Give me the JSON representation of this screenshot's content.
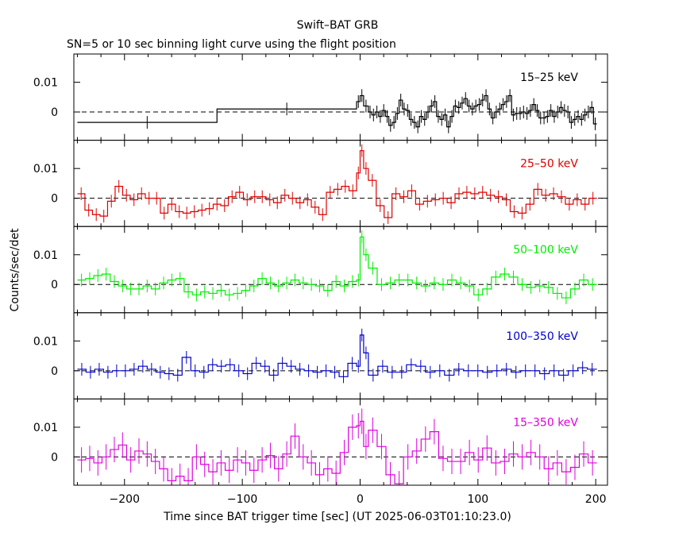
{
  "chart_data": {
    "type": "line",
    "title": "Swift–BAT GRB",
    "subtitle": "SN=5 or 10 sec binning light curve using the flight position",
    "xlabel": "Time since BAT trigger time [sec] (UT 2025-06-03T01:10:23.0)",
    "ylabel": "Counts/sec/det",
    "xlim": [
      -243,
      210
    ],
    "ylim": [
      -0.0095,
      0.0195
    ],
    "x_ticks": [
      -200,
      -100,
      0,
      100,
      200
    ],
    "y_ticks": [
      0,
      0.01
    ],
    "zero_line": "dashed",
    "panels": [
      {
        "label": "15–25 keV",
        "color": "#000000",
        "values": [
          -0.0035,
          0.001,
          0.0035,
          0.0055,
          0.002,
          0.0,
          -0.001,
          0.0,
          -0.0015,
          0.0005,
          -0.0015,
          -0.0045,
          -0.0035,
          -0.0005,
          0.004,
          0.001,
          0.0005,
          -0.0025,
          -0.0035,
          -0.005,
          -0.0015,
          -0.0025,
          0.0,
          0.002,
          0.0035,
          -0.0015,
          -0.0025,
          -0.001,
          -0.005,
          -0.0015,
          0.002,
          0.0015,
          0.003,
          0.0045,
          0.002,
          0.001,
          0.002,
          0.0025,
          0.004,
          0.0055,
          0.001,
          -0.002,
          0.0,
          0.001,
          0.0025,
          0.0035,
          0.0055,
          -0.001,
          -0.0005,
          -0.0005,
          0.0,
          -0.0005,
          0.0005,
          0.0025,
          0.0005,
          -0.002,
          -0.002,
          -0.0015,
          0.0005,
          -0.0015,
          0.0,
          0.0015,
          0.0005,
          0.0,
          -0.0035,
          -0.0025,
          -0.0015,
          -0.0025,
          -0.001,
          0.0,
          0.0015,
          -0.004
        ]
      },
      {
        "label": "25–50 keV",
        "color": "#dd0000",
        "values": [
          0.0015,
          -0.004,
          -0.0055,
          -0.006,
          -0.001,
          0.004,
          0.001,
          -0.0005,
          0.0015,
          0.0,
          0.0,
          -0.005,
          -0.002,
          -0.0045,
          -0.005,
          -0.0045,
          -0.004,
          -0.0035,
          -0.002,
          -0.0025,
          0.0005,
          0.002,
          -0.0005,
          0.0005,
          0.0005,
          -0.0005,
          -0.0015,
          0.001,
          0.0,
          -0.0015,
          -0.0005,
          -0.003,
          -0.0055,
          0.002,
          0.003,
          0.004,
          0.0025,
          0.0085,
          0.016,
          0.01,
          0.006,
          -0.0025,
          -0.0065,
          0.0015,
          0.0005,
          0.0025,
          -0.002,
          -0.001,
          -0.0005,
          0.0,
          -0.0015,
          0.0015,
          0.002,
          0.0015,
          0.002,
          0.001,
          0.0005,
          -0.0005,
          -0.0045,
          -0.005,
          -0.002,
          0.003,
          0.001,
          0.0015,
          0.0005,
          -0.002,
          -0.0005,
          -0.002,
          0.0
        ]
      },
      {
        "label": "50–100 keV",
        "color": "#00ee00",
        "values": [
          0.0015,
          0.002,
          0.003,
          0.0035,
          0.001,
          -0.0005,
          -0.0015,
          -0.0015,
          -0.0005,
          -0.0015,
          0.0005,
          0.0015,
          0.002,
          -0.0025,
          -0.0035,
          -0.0025,
          -0.003,
          -0.002,
          -0.0035,
          -0.003,
          -0.002,
          -0.0005,
          0.002,
          0.0005,
          -0.0005,
          0.0005,
          0.0015,
          0.0005,
          0.0,
          -0.0005,
          -0.002,
          0.001,
          -0.0005,
          0.001,
          0.0015,
          0.016,
          0.01,
          0.0055,
          0.0,
          0.0005,
          0.0015,
          0.0015,
          0.0005,
          -0.0005,
          0.0005,
          0.0,
          0.0015,
          0.0005,
          -0.0005,
          -0.0035,
          -0.0015,
          0.0025,
          0.0035,
          0.0025,
          0.0,
          -0.001,
          -0.0005,
          -0.001,
          -0.003,
          -0.0045,
          -0.0015,
          0.0015,
          0.0
        ]
      },
      {
        "label": "100–350 keV",
        "color": "#0000cc",
        "values": [
          0.0005,
          -0.0005,
          0.0005,
          -0.0005,
          0.0,
          0.0,
          0.0005,
          0.0015,
          0.0005,
          -0.0005,
          -0.001,
          -0.0015,
          0.0045,
          0.0,
          -0.0005,
          0.002,
          0.0015,
          0.002,
          0.0,
          -0.001,
          0.0025,
          0.0015,
          -0.0015,
          0.0025,
          0.0015,
          0.0005,
          0.0,
          -0.0005,
          0.0,
          -0.0005,
          -0.002,
          0.0025,
          0.0015,
          0.012,
          0.006,
          -0.0015,
          0.0015,
          -0.0005,
          -0.0005,
          0.002,
          0.0015,
          -0.0005,
          0.0,
          -0.0015,
          0.0005,
          0.0,
          0.0,
          -0.0005,
          0.0,
          0.0005,
          -0.0005,
          0.0,
          0.0,
          -0.001,
          0.0,
          -0.0015,
          0.0,
          0.001,
          0.0005
        ]
      },
      {
        "label": "15–350 keV",
        "color": "#dd00dd",
        "values": [
          -0.001,
          -0.0005,
          -0.002,
          0.0,
          0.0025,
          0.004,
          -0.001,
          0.002,
          0.001,
          -0.0015,
          -0.004,
          -0.008,
          -0.0065,
          -0.008,
          0.0,
          -0.0025,
          -0.005,
          -0.002,
          -0.0045,
          -0.001,
          -0.002,
          -0.0045,
          -0.001,
          0.0005,
          -0.004,
          0.001,
          0.007,
          0.0,
          -0.002,
          -0.006,
          -0.004,
          -0.0055,
          0.0015,
          0.01,
          0.0105,
          0.012,
          0.0035,
          0.009,
          0.0035,
          -0.006,
          -0.009,
          0.0,
          0.002,
          0.006,
          0.0085,
          -0.0005,
          -0.0015,
          -0.0015,
          0.0015,
          -0.001,
          0.003,
          -0.002,
          -0.0015,
          0.001,
          0.0,
          0.0015,
          0.0,
          -0.004,
          -0.002,
          -0.005,
          -0.0035,
          0.001,
          -0.002
        ]
      }
    ]
  }
}
